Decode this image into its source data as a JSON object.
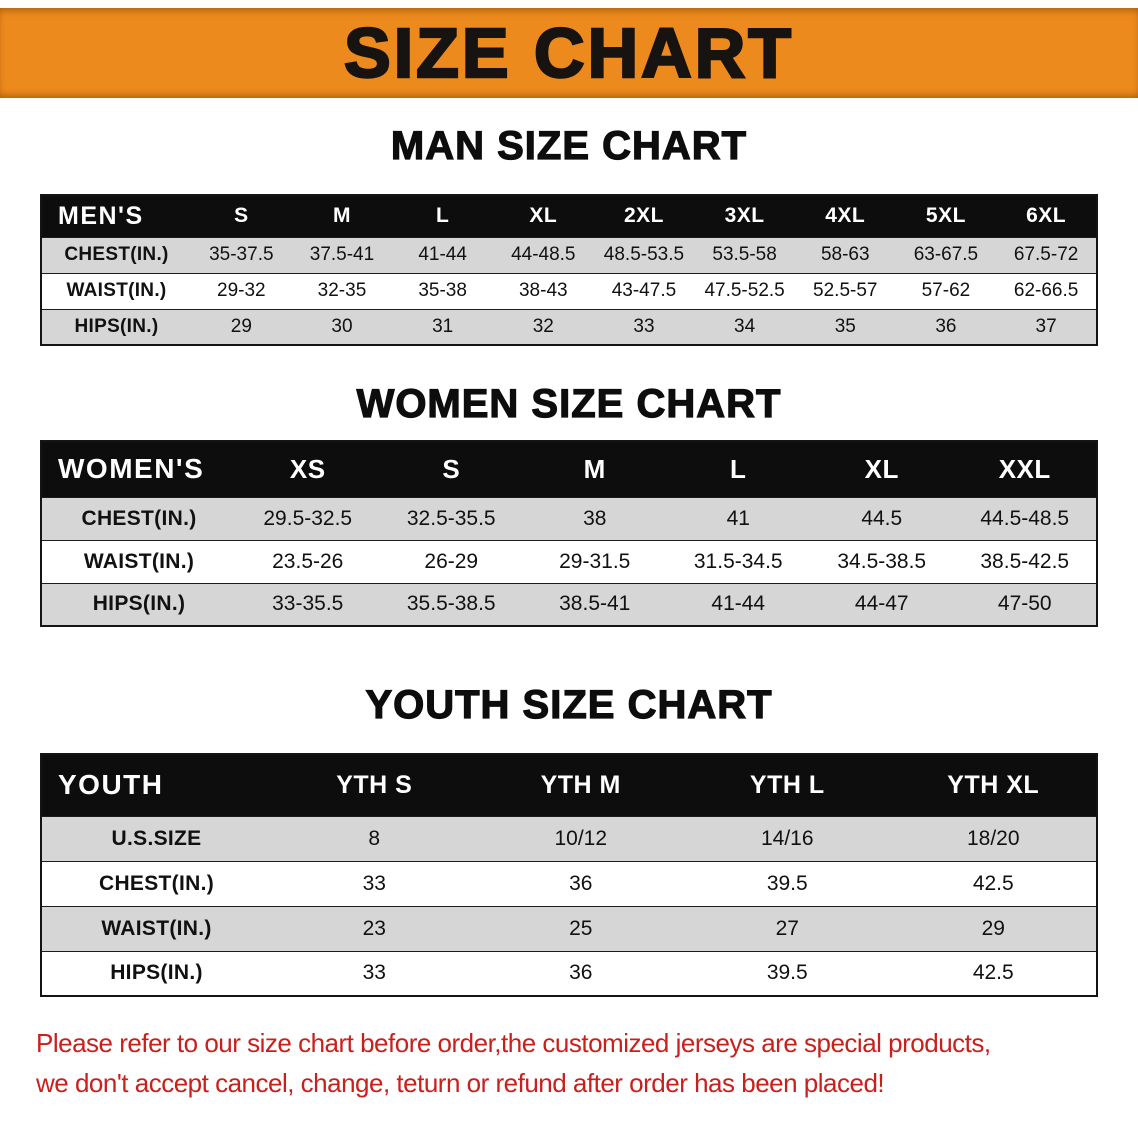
{
  "banner": {
    "title": "SIZE CHART"
  },
  "chart_data": [
    {
      "type": "table",
      "id": "men",
      "title": "MAN SIZE CHART",
      "header_label": "MEN'S",
      "columns": [
        "S",
        "M",
        "L",
        "XL",
        "2XL",
        "3XL",
        "4XL",
        "5XL",
        "6XL"
      ],
      "rows": [
        {
          "label": "CHEST(IN.)",
          "values": [
            "35-37.5",
            "37.5-41",
            "41-44",
            "44-48.5",
            "48.5-53.5",
            "53.5-58",
            "58-63",
            "63-67.5",
            "67.5-72"
          ]
        },
        {
          "label": "WAIST(IN.)",
          "values": [
            "29-32",
            "32-35",
            "35-38",
            "38-43",
            "43-47.5",
            "47.5-52.5",
            "52.5-57",
            "57-62",
            "62-66.5"
          ]
        },
        {
          "label": "HIPS(IN.)",
          "values": [
            "29",
            "30",
            "31",
            "32",
            "33",
            "34",
            "35",
            "36",
            "37"
          ]
        }
      ]
    },
    {
      "type": "table",
      "id": "women",
      "title": "WOMEN SIZE CHART",
      "header_label": "WOMEN'S",
      "columns": [
        "XS",
        "S",
        "M",
        "L",
        "XL",
        "XXL"
      ],
      "rows": [
        {
          "label": "CHEST(IN.)",
          "values": [
            "29.5-32.5",
            "32.5-35.5",
            "38",
            "41",
            "44.5",
            "44.5-48.5"
          ]
        },
        {
          "label": "WAIST(IN.)",
          "values": [
            "23.5-26",
            "26-29",
            "29-31.5",
            "31.5-34.5",
            "34.5-38.5",
            "38.5-42.5"
          ]
        },
        {
          "label": "HIPS(IN.)",
          "values": [
            "33-35.5",
            "35.5-38.5",
            "38.5-41",
            "41-44",
            "44-47",
            "47-50"
          ]
        }
      ]
    },
    {
      "type": "table",
      "id": "youth",
      "title": "YOUTH SIZE CHART",
      "header_label": "YOUTH",
      "columns": [
        "YTH S",
        "YTH M",
        "YTH L",
        "YTH XL"
      ],
      "rows": [
        {
          "label": "U.S.SIZE",
          "values": [
            "8",
            "10/12",
            "14/16",
            "18/20"
          ]
        },
        {
          "label": "CHEST(IN.)",
          "values": [
            "33",
            "36",
            "39.5",
            "42.5"
          ]
        },
        {
          "label": "WAIST(IN.)",
          "values": [
            "23",
            "25",
            "27",
            "29"
          ]
        },
        {
          "label": "HIPS(IN.)",
          "values": [
            "33",
            "36",
            "39.5",
            "42.5"
          ]
        }
      ]
    }
  ],
  "disclaimer": {
    "line1": "Please refer to our size chart before order,the customized jerseys are special products,",
    "line2": "we don't accept cancel, change, teturn or refund after order has been placed!"
  },
  "colors": {
    "banner_orange": "#ED8A1D",
    "header_black": "#0D0D0D",
    "row_gray": "#D6D6D6",
    "disclaimer_red": "#C9201C",
    "table_border": "#141414"
  }
}
